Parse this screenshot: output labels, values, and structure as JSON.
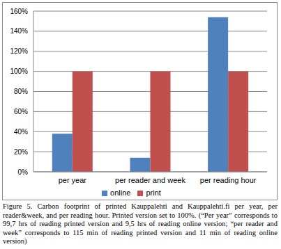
{
  "chart_data": {
    "type": "bar",
    "categories": [
      "per year",
      "per reader and week",
      "per reading hour"
    ],
    "series": [
      {
        "name": "online",
        "color": "#4f81bd",
        "values": [
          38,
          14,
          154
        ]
      },
      {
        "name": "print",
        "color": "#c0504d",
        "values": [
          100,
          100,
          100
        ]
      }
    ],
    "ylim": [
      0,
      160
    ],
    "yticks": [
      {
        "value": 0,
        "label": "0%"
      },
      {
        "value": 20,
        "label": "20%"
      },
      {
        "value": 40,
        "label": "40%"
      },
      {
        "value": 60,
        "label": "60%"
      },
      {
        "value": 80,
        "label": "80%"
      },
      {
        "value": 100,
        "label": "100%"
      },
      {
        "value": 120,
        "label": "120%"
      },
      {
        "value": 140,
        "label": "140%"
      },
      {
        "value": 160,
        "label": "160%"
      }
    ],
    "grid": true,
    "legend": "bottom",
    "caption": "Figure 5. Carbon footprint of printed Kauppalehti and Kauppalehti.fi per year, per reader&week, and per reading hour. Printed version set to 100%. (“Per year” corresponds to 99,7 hrs of reading printed version and 9,5 hrs of reading online version; “per reader and week” corresponds to 115 min of reading printed version and 11 min of reading online version)"
  }
}
